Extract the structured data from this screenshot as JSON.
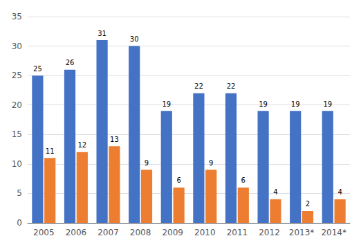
{
  "chart_data": {
    "type": "bar",
    "categories": [
      "2005",
      "2006",
      "2007",
      "2008",
      "2009",
      "2010",
      "2011",
      "2012",
      "2013*",
      "2014*"
    ],
    "series": [
      {
        "color": "#4472C4",
        "values": [
          25,
          26,
          31,
          30,
          19,
          22,
          22,
          19,
          19,
          19
        ]
      },
      {
        "color": "#ED7D31",
        "values": [
          11,
          12,
          13,
          9,
          6,
          9,
          6,
          4,
          2,
          4
        ]
      }
    ],
    "ylim": [
      0,
      35
    ],
    "yticks": [
      0,
      5,
      10,
      15,
      20,
      25,
      30,
      35
    ],
    "grid": true,
    "data_labels": true
  }
}
